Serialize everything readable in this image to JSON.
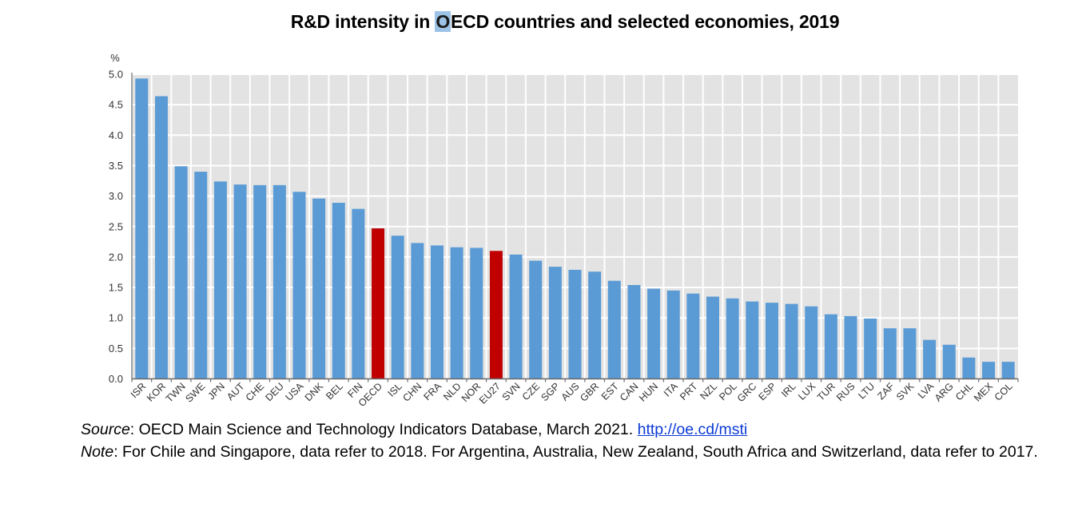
{
  "title": {
    "before": "R&D intensity in ",
    "highlight": "O",
    "after": "ECD countries and selected economies, 2019"
  },
  "chart_data": {
    "type": "bar",
    "title": "R&D intensity in OECD countries and selected economies, 2019",
    "xlabel": "",
    "ylabel": "%",
    "ylim": [
      0,
      5.0
    ],
    "yticks": [
      "0.0",
      "0.5",
      "1.0",
      "1.5",
      "2.0",
      "2.5",
      "3.0",
      "3.5",
      "4.0",
      "4.5",
      "5.0"
    ],
    "grid": true,
    "legend": "none",
    "colors": {
      "default": "#5b9bd5",
      "highlight": "#c00000",
      "plot_bg": "#e3e3e3",
      "grid": "#ffffff"
    },
    "highlighted": [
      "OECD",
      "EU27"
    ],
    "categories": [
      "ISR",
      "KOR",
      "TWN",
      "SWE",
      "JPN",
      "AUT",
      "CHE",
      "DEU",
      "USA",
      "DNK",
      "BEL",
      "FIN",
      "OECD",
      "ISL",
      "CHN",
      "FRA",
      "NLD",
      "NOR",
      "EU27",
      "SVN",
      "CZE",
      "SGP",
      "AUS",
      "GBR",
      "EST",
      "CAN",
      "HUN",
      "ITA",
      "PRT",
      "NZL",
      "POL",
      "GRC",
      "ESP",
      "IRL",
      "LUX",
      "TUR",
      "RUS",
      "LTU",
      "ZAF",
      "SVK",
      "LVA",
      "ARG",
      "CHL",
      "MEX",
      "COL"
    ],
    "values": [
      4.93,
      4.64,
      3.49,
      3.4,
      3.24,
      3.19,
      3.18,
      3.18,
      3.07,
      2.96,
      2.89,
      2.79,
      2.47,
      2.35,
      2.23,
      2.19,
      2.16,
      2.15,
      2.1,
      2.04,
      1.94,
      1.84,
      1.79,
      1.76,
      1.61,
      1.54,
      1.48,
      1.45,
      1.4,
      1.35,
      1.32,
      1.27,
      1.25,
      1.23,
      1.19,
      1.06,
      1.03,
      0.99,
      0.83,
      0.83,
      0.64,
      0.56,
      0.35,
      0.28,
      0.28
    ]
  },
  "notes": {
    "source_label": "Source",
    "source_text": ": OECD Main Science and Technology Indicators Database, March 2021. ",
    "source_link": "http://oe.cd/msti",
    "note_label": "Note",
    "note_text": ": For Chile and Singapore, data refer to 2018. For Argentina, Australia, New Zealand, South Africa and Switzerland, data refer to 2017."
  }
}
